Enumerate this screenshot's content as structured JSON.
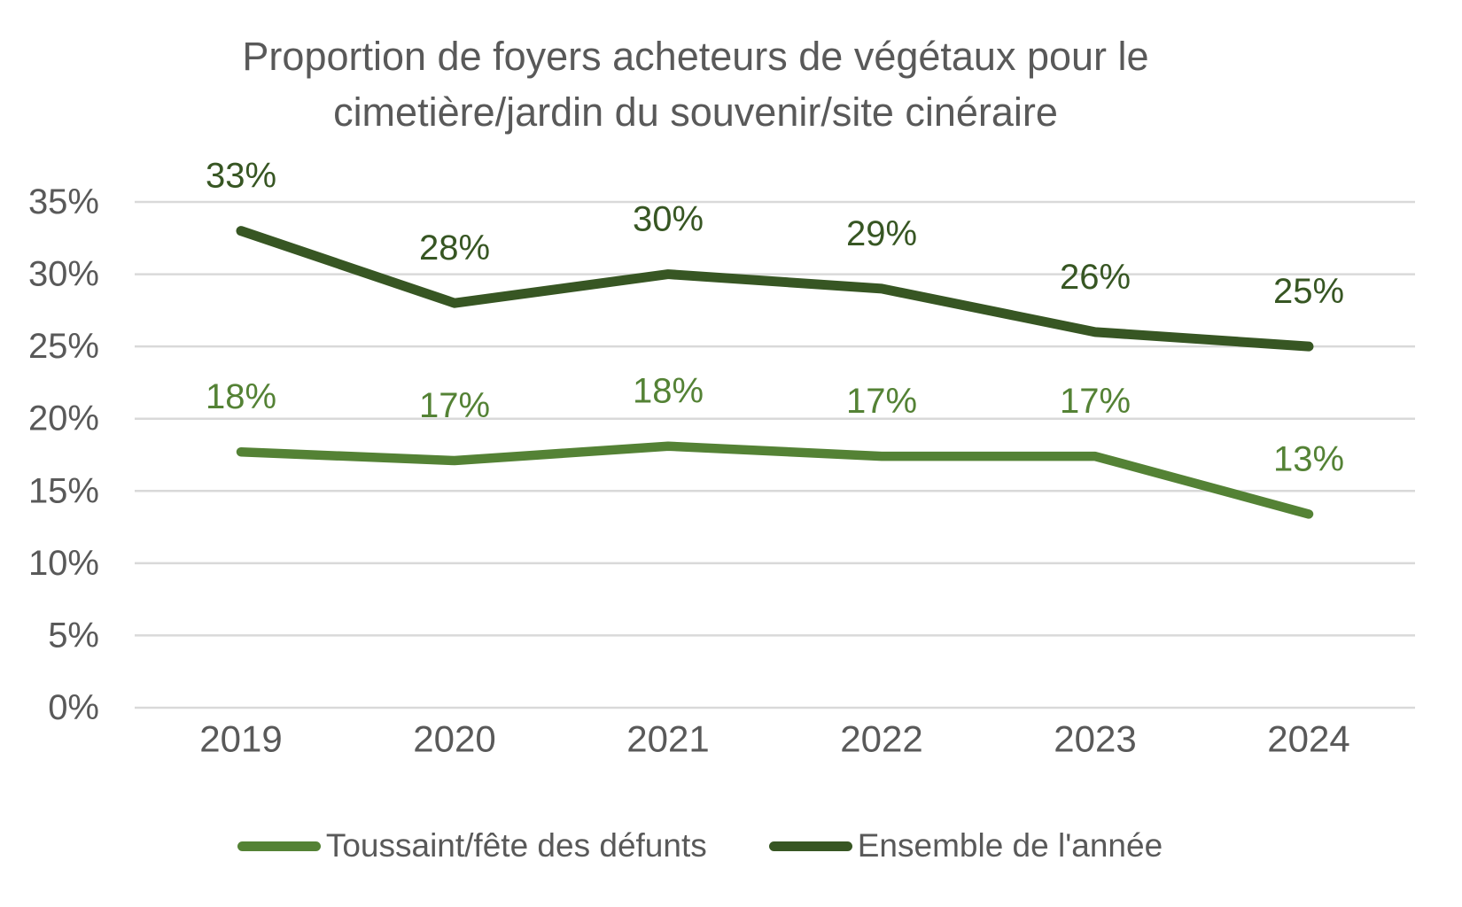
{
  "chart_data": {
    "type": "line",
    "title": "Proportion de foyers acheteurs de végétaux pour le cimetière/jardin du souvenir/site cinéraire",
    "title_lines": [
      "Proportion de foyers acheteurs de végétaux pour le",
      "cimetière/jardin du souvenir/site cinéraire"
    ],
    "categories": [
      "2019",
      "2020",
      "2021",
      "2022",
      "2023",
      "2024"
    ],
    "series": [
      {
        "name": "Toussaint/fête des défunts",
        "color": "#548235",
        "values": [
          18,
          17,
          18,
          17,
          17,
          13
        ],
        "labels": [
          "18%",
          "17%",
          "18%",
          "17%",
          "17%",
          "13%"
        ],
        "plotted": [
          17.7,
          17.1,
          18.1,
          17.4,
          17.4,
          13.4
        ]
      },
      {
        "name": "Ensemble de l'année",
        "color": "#375623",
        "values": [
          33,
          28,
          30,
          29,
          26,
          25
        ],
        "labels": [
          "33%",
          "28%",
          "30%",
          "29%",
          "26%",
          "25%"
        ],
        "plotted": [
          33,
          28,
          30,
          29,
          26,
          25
        ]
      }
    ],
    "y_axis": {
      "min": 0,
      "max": 35,
      "step": 5,
      "tick_labels": [
        "0%",
        "5%",
        "10%",
        "15%",
        "20%",
        "25%",
        "30%",
        "35%"
      ]
    },
    "x_axis": {
      "label": ""
    },
    "grid": true,
    "legend_position": "bottom",
    "colors": {
      "axis_text": "#595959",
      "title_text": "#595959",
      "gridline": "#D9D9D9",
      "background": "#FFFFFF"
    }
  }
}
